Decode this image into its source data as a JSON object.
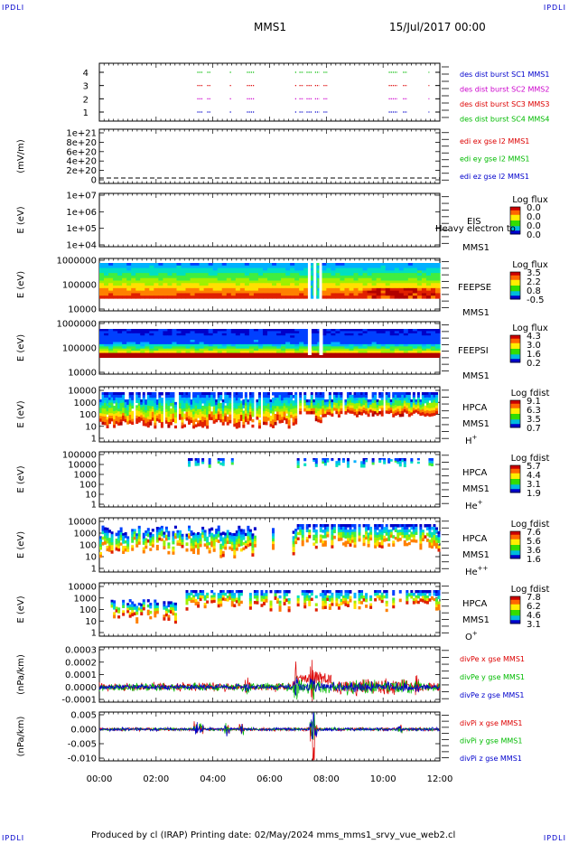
{
  "corners": {
    "tl": "IPDLI",
    "tr": "IPDLI",
    "bl": "IPDLI",
    "br": "IPDLI"
  },
  "header": {
    "spacecraft": "MMS1",
    "date": "15/Jul/2017 00:00"
  },
  "footer": "Produced by cl (IRAP)   Printing date: 02/May/2024   mms_mms1_srvy_vue_web2.cl",
  "colors": {
    "red": "#dd0000",
    "magenta": "#cc00cc",
    "green": "#00bb00",
    "blue": "#0000cc"
  },
  "chart_data": [
    {
      "type": "scatter",
      "id": "burst",
      "y_ticks": [
        "1",
        "2",
        "3",
        "4"
      ],
      "legend": [
        "des dist burst SC1 MMS1",
        "des dist burst SC2 MMS2",
        "des dist burst SC3 MMS3",
        "des dist burst SC4 MMS4"
      ],
      "series": [
        {
          "level": 4,
          "segments": [
            [
              3.45,
              3.65
            ],
            [
              3.8,
              3.92
            ],
            [
              4.6,
              4.65
            ],
            [
              5.2,
              5.45
            ],
            [
              6.9,
              6.95
            ],
            [
              7.05,
              7.2
            ],
            [
              7.3,
              7.5
            ],
            [
              7.6,
              7.75
            ],
            [
              7.9,
              8.05
            ],
            [
              10.2,
              10.5
            ],
            [
              10.7,
              10.85
            ],
            [
              11.6,
              11.63
            ]
          ]
        },
        {
          "level": 3,
          "segments": [
            [
              3.45,
              3.65
            ],
            [
              3.8,
              3.92
            ],
            [
              4.6,
              4.65
            ],
            [
              5.2,
              5.45
            ],
            [
              6.9,
              6.95
            ],
            [
              7.05,
              7.2
            ],
            [
              7.3,
              7.5
            ],
            [
              7.6,
              7.75
            ],
            [
              7.9,
              8.05
            ],
            [
              10.2,
              10.5
            ],
            [
              10.7,
              10.85
            ],
            [
              11.6,
              11.63
            ]
          ]
        },
        {
          "level": 2,
          "segments": [
            [
              3.45,
              3.65
            ],
            [
              3.8,
              3.92
            ],
            [
              4.6,
              4.65
            ],
            [
              5.2,
              5.45
            ],
            [
              6.9,
              6.95
            ],
            [
              7.05,
              7.2
            ],
            [
              7.3,
              7.5
            ],
            [
              7.6,
              7.75
            ],
            [
              7.9,
              8.05
            ],
            [
              10.2,
              10.5
            ],
            [
              10.7,
              10.85
            ],
            [
              11.6,
              11.63
            ]
          ]
        },
        {
          "level": 1,
          "segments": [
            [
              3.45,
              3.65
            ],
            [
              3.8,
              3.92
            ],
            [
              4.6,
              4.65
            ],
            [
              5.2,
              5.45
            ],
            [
              6.9,
              6.95
            ],
            [
              7.05,
              7.2
            ],
            [
              7.3,
              7.5
            ],
            [
              7.6,
              7.75
            ],
            [
              7.9,
              8.05
            ],
            [
              10.2,
              10.5
            ],
            [
              10.7,
              10.85
            ],
            [
              11.6,
              11.63
            ]
          ]
        }
      ]
    },
    {
      "type": "line",
      "id": "edi",
      "ylabel": "(mV/m)",
      "y_ticks": [
        "1e+21",
        "8e+20",
        "6e+20",
        "4e+20",
        "2e+20",
        "0"
      ],
      "legend": [
        "edi ex gse l2 MMS1",
        "edi ey gse l2 MMS1",
        "edi ez gse l2 MMS1"
      ]
    },
    {
      "type": "heatmap",
      "id": "eis",
      "ylabel": "E (eV)",
      "y_ticks": [
        "1e+07",
        "1e+06",
        "1e+05",
        "1e+04"
      ],
      "right_labels": [
        "EIS",
        "MMS1"
      ],
      "overlay": "Heavy electron to",
      "colorbar": {
        "title": "Log flux",
        "ticks": [
          "0.0",
          "0.0",
          "0.0",
          "0.0"
        ]
      }
    },
    {
      "type": "heatmap",
      "id": "feepse",
      "ylabel": "E (eV)",
      "y_ticks": [
        "1000000",
        "100000",
        "10000"
      ],
      "right_labels": [
        "FEEPSE",
        "MMS1"
      ],
      "colorbar": {
        "title": "Log flux",
        "ticks": [
          "3.5",
          "2.2",
          "0.8",
          "-0.5"
        ]
      }
    },
    {
      "type": "heatmap",
      "id": "feepsi",
      "ylabel": "E (eV)",
      "y_ticks": [
        "1000000",
        "100000",
        "10000"
      ],
      "right_labels": [
        "FEEPSI",
        "MMS1"
      ],
      "colorbar": {
        "title": "Log flux",
        "ticks": [
          "4.3",
          "3.0",
          "1.6",
          "0.2"
        ]
      }
    },
    {
      "type": "heatmap",
      "id": "hpca_h",
      "ylabel": "E (eV)",
      "y_ticks": [
        "10000",
        "1000",
        "100",
        "10",
        "1"
      ],
      "right_labels": [
        "HPCA",
        "MMS1",
        "H"
      ],
      "ion_sup": "+",
      "colorbar": {
        "title": "Log fdist",
        "ticks": [
          "9.1",
          "6.3",
          "3.5",
          "0.7"
        ]
      }
    },
    {
      "type": "heatmap",
      "id": "hpca_he",
      "ylabel": "E (eV)",
      "y_ticks": [
        "100000",
        "10000",
        "1000",
        "100",
        "10",
        "1"
      ],
      "right_labels": [
        "HPCA",
        "MMS1",
        "He"
      ],
      "ion_sup": "+",
      "colorbar": {
        "title": "Log fdist",
        "ticks": [
          "5.7",
          "4.4",
          "3.1",
          "1.9"
        ]
      }
    },
    {
      "type": "heatmap",
      "id": "hpca_hepp",
      "ylabel": "E (eV)",
      "y_ticks": [
        "10000",
        "1000",
        "100",
        "10",
        "1"
      ],
      "right_labels": [
        "HPCA",
        "MMS1",
        "He"
      ],
      "ion_sup": "++",
      "colorbar": {
        "title": "Log fdist",
        "ticks": [
          "7.6",
          "5.6",
          "3.6",
          "1.6"
        ]
      }
    },
    {
      "type": "heatmap",
      "id": "hpca_o",
      "ylabel": "E (eV)",
      "y_ticks": [
        "10000",
        "1000",
        "100",
        "10",
        "1"
      ],
      "right_labels": [
        "HPCA",
        "MMS1",
        "O"
      ],
      "ion_sup": "+",
      "colorbar": {
        "title": "Log fdist",
        "ticks": [
          "7.8",
          "6.2",
          "4.6",
          "3.1"
        ]
      }
    },
    {
      "type": "line",
      "id": "divpe",
      "ylabel": "(nPa/km)",
      "y_ticks": [
        "0.0003",
        "0.0002",
        "0.0001",
        "0.0000",
        "-0.0001"
      ],
      "legend": [
        "divPe x gse MMS1",
        "divPe y gse MMS1",
        "divPe z gse MMS1"
      ]
    },
    {
      "type": "line",
      "id": "divpi",
      "ylabel": "(nPa/km)",
      "y_ticks": [
        "0.005",
        "0.000",
        "-0.005",
        "-0.010"
      ],
      "legend": [
        "divPi x gse MMS1",
        "divPi y gse MMS1",
        "divPi z gse MMS1"
      ]
    }
  ],
  "xaxis": {
    "ticks": [
      "00:00",
      "02:00",
      "04:00",
      "06:00",
      "08:00",
      "10:00",
      "12:00"
    ],
    "range_hours": [
      0,
      12
    ]
  }
}
